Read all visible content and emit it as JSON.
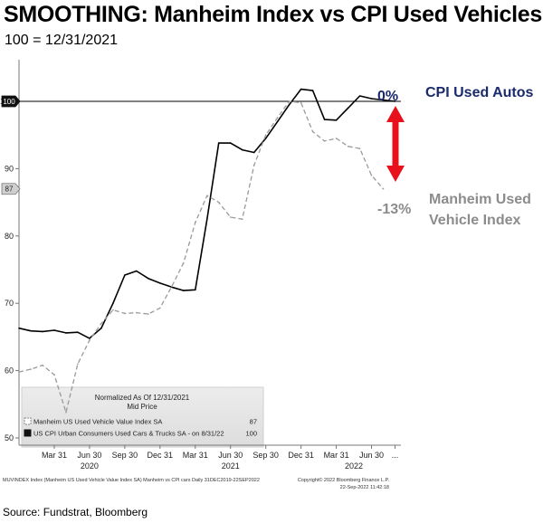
{
  "header": {
    "title": "SMOOTHING: Manheim Index vs CPI Used Vehicles",
    "subtitle": "100 = 12/31/2021"
  },
  "footer": {
    "source": "Source: Fundstrat, Bloomberg",
    "bloomberg_line": "MUVINDEX Index (Manheim US Used Vehicle Value Index SA) Manheim vs CPI cars  Daily 31DEC2019-22SEP2022",
    "copyright": "Copyright© 2022 Bloomberg Finance L.P.",
    "timestamp": "22-Sep-2022 11:42:18"
  },
  "legend": {
    "heading1": "Normalized As Of 12/31/2021",
    "heading2": "Mid Price",
    "entries": [
      {
        "label": "Manheim US Used Vehicle Value Index SA",
        "value": "87"
      },
      {
        "label": "US CPI Urban Consumers Used Cars & Trucks SA -   on 8/31/22",
        "value": "100"
      }
    ]
  },
  "annotations": {
    "cpi_label": "CPI Used Autos",
    "cpi_change": "0%",
    "manheim_label_line1": "Manheim Used",
    "manheim_label_line2": "Vehicle Index",
    "manheim_change": "-13%"
  },
  "colors": {
    "cpi": "#000000",
    "manheim": "#9a9a9a",
    "arrow": "#e8101b",
    "cpi_annotation": "#1a2a6c",
    "manheim_annotation": "#8c8c8c"
  },
  "chart_data": {
    "type": "line",
    "title": "SMOOTHING: Manheim Index vs CPI Used Vehicles",
    "subtitle": "100 = 12/31/2021",
    "xlabel": "",
    "ylabel": "",
    "ylim": [
      50,
      105
    ],
    "xlim": [
      0,
      32.5
    ],
    "yticks": [
      50,
      60,
      70,
      80,
      90,
      100
    ],
    "reference_line": 100,
    "grid": false,
    "legend_position": "bottom-left",
    "x_tick_labels": [
      {
        "x": 3,
        "label": "Mar 31"
      },
      {
        "x": 6,
        "label": "Jun 30"
      },
      {
        "x": 9,
        "label": "Sep 30"
      },
      {
        "x": 12,
        "label": "Dec 31"
      },
      {
        "x": 15,
        "label": "Mar 31"
      },
      {
        "x": 18,
        "label": "Jun 30"
      },
      {
        "x": 21,
        "label": "Sep 30"
      },
      {
        "x": 24,
        "label": "Dec 31"
      },
      {
        "x": 27,
        "label": "Mar 31"
      },
      {
        "x": 30,
        "label": "Jun 30"
      },
      {
        "x": 32,
        "label": "..."
      }
    ],
    "x_year_labels": [
      {
        "x": 6,
        "label": "2020"
      },
      {
        "x": 18,
        "label": "2021"
      },
      {
        "x": 28.5,
        "label": "2022"
      }
    ],
    "end_labels": [
      {
        "series": "Manheim US Used Vehicle Value Index SA",
        "value": 87
      },
      {
        "series": "US CPI Urban Consumers Used Cars & Trucks SA",
        "value": 100
      }
    ],
    "series": [
      {
        "name": "US CPI Urban Consumers Used Cars & Trucks SA",
        "style": "solid",
        "points": [
          [
            0,
            66.3
          ],
          [
            1,
            65.9
          ],
          [
            2,
            65.8
          ],
          [
            3,
            66.0
          ],
          [
            4,
            65.6
          ],
          [
            5,
            65.7
          ],
          [
            6,
            64.8
          ],
          [
            7,
            66.3
          ],
          [
            8,
            70.0
          ],
          [
            9,
            74.2
          ],
          [
            10,
            74.8
          ],
          [
            11,
            73.7
          ],
          [
            12,
            73.0
          ],
          [
            13,
            72.4
          ],
          [
            14,
            71.9
          ],
          [
            15,
            72.0
          ],
          [
            16,
            82.5
          ],
          [
            17,
            93.8
          ],
          [
            18,
            93.8
          ],
          [
            19,
            92.8
          ],
          [
            20,
            92.4
          ],
          [
            21,
            94.5
          ],
          [
            22,
            97.0
          ],
          [
            23,
            99.5
          ],
          [
            24,
            101.8
          ],
          [
            25,
            101.6
          ],
          [
            26,
            97.3
          ],
          [
            27,
            97.2
          ],
          [
            28,
            99.0
          ],
          [
            29,
            100.8
          ],
          [
            30,
            100.4
          ],
          [
            31,
            100.2
          ],
          [
            32,
            100.0
          ]
        ]
      },
      {
        "name": "Manheim US Used Vehicle Value Index SA",
        "style": "dashed",
        "points": [
          [
            0,
            59.8
          ],
          [
            1,
            60.2
          ],
          [
            2,
            60.8
          ],
          [
            3,
            59.4
          ],
          [
            4,
            53.8
          ],
          [
            5,
            61.0
          ],
          [
            6,
            64.5
          ],
          [
            7,
            67.0
          ],
          [
            8,
            69.0
          ],
          [
            9,
            68.5
          ],
          [
            10,
            68.6
          ],
          [
            11,
            68.4
          ],
          [
            12,
            69.3
          ],
          [
            13,
            72.5
          ],
          [
            14,
            76.0
          ],
          [
            15,
            82.0
          ],
          [
            16,
            86.0
          ],
          [
            17,
            85.0
          ],
          [
            18,
            82.8
          ],
          [
            19,
            82.5
          ],
          [
            20,
            90.5
          ],
          [
            21,
            95.0
          ],
          [
            22,
            97.6
          ],
          [
            23,
            100.0
          ],
          [
            24,
            99.8
          ],
          [
            25,
            95.5
          ],
          [
            26,
            94.1
          ],
          [
            27,
            94.5
          ],
          [
            28,
            93.3
          ],
          [
            29,
            93.0
          ],
          [
            30,
            89.0
          ],
          [
            31,
            87.0
          ]
        ]
      }
    ]
  }
}
